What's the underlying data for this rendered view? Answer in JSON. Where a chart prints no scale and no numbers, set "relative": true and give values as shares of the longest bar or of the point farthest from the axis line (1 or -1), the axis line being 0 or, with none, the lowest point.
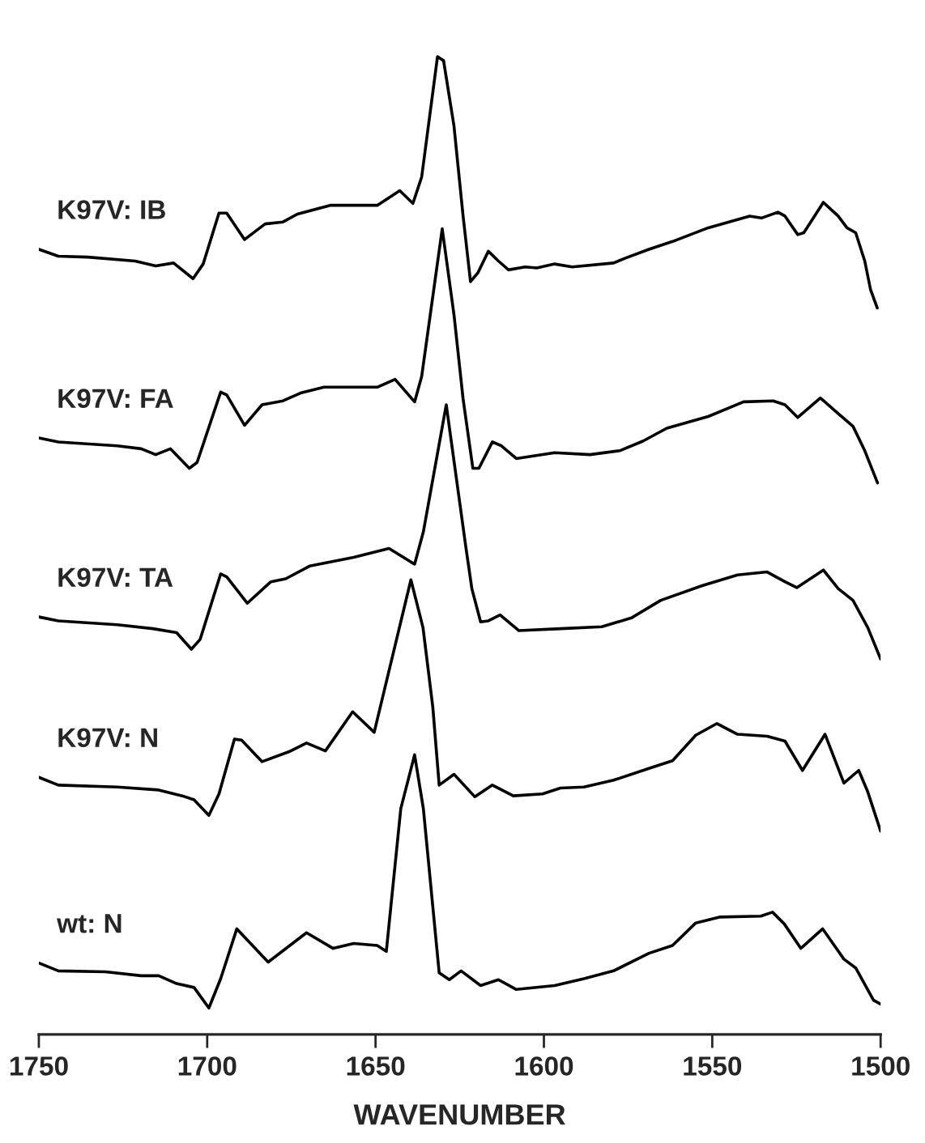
{
  "chart_data": {
    "type": "line",
    "relative": true,
    "xlabel": "WAVENUMBER",
    "xlim": [
      1750,
      1500
    ],
    "xticks": [
      1750,
      1700,
      1650,
      1600,
      1550,
      1500
    ],
    "tick_labels": "x",
    "legend": false,
    "grid": false,
    "line_style": "solid",
    "marker": "none",
    "series": [
      {
        "name": "K97V: IB",
        "color": "#000000",
        "x": [
          1750,
          1744.2,
          1735.4,
          1721.4,
          1715.3,
          1710,
          1704.2,
          1701.2,
          1696.5,
          1694.2,
          1688.9,
          1682.8,
          1677.5,
          1673.2,
          1663.5,
          1649.5,
          1642.8,
          1638.9,
          1636.3,
          1631.6,
          1629.8,
          1626.7,
          1624.0,
          1621.8,
          1619.6,
          1616.5,
          1613.5,
          1610.5,
          1605.6,
          1602.1,
          1596.8,
          1591.6,
          1579.3,
          1575.8,
          1568.8,
          1561.8,
          1551.2,
          1538.9,
          1535.4,
          1530.5,
          1528.4,
          1524.6,
          1522.8,
          1517.0,
          1512.6,
          1510.0,
          1507.4,
          1504.7,
          1503.0,
          1501
        ],
        "values": [
          0.803,
          0.796,
          0.795,
          0.791,
          0.786,
          0.789,
          0.773,
          0.788,
          0.84,
          0.84,
          0.813,
          0.829,
          0.831,
          0.839,
          0.848,
          0.848,
          0.863,
          0.85,
          0.877,
          1.0,
          0.996,
          0.929,
          0.837,
          0.77,
          0.779,
          0.801,
          0.791,
          0.782,
          0.785,
          0.784,
          0.788,
          0.785,
          0.789,
          0.794,
          0.803,
          0.811,
          0.825,
          0.837,
          0.835,
          0.841,
          0.837,
          0.818,
          0.82,
          0.851,
          0.837,
          0.825,
          0.82,
          0.791,
          0.762,
          0.743
        ]
      },
      {
        "name": "K97V: FA",
        "color": "#000000",
        "x": [
          1750,
          1744.2,
          1726.7,
          1719.6,
          1715.3,
          1710.9,
          1705.3,
          1703.0,
          1696.0,
          1694.2,
          1688.9,
          1683.7,
          1677.5,
          1672.3,
          1665.3,
          1649.5,
          1644.2,
          1638.4,
          1636.3,
          1630.2,
          1626.7,
          1624.0,
          1621.1,
          1619.3,
          1615.3,
          1612.6,
          1608.2,
          1596.8,
          1586.3,
          1577.5,
          1570.5,
          1563.5,
          1551.2,
          1540.7,
          1531.9,
          1528.4,
          1524.6,
          1517.9,
          1512.6,
          1508.2,
          1504.7,
          1500.9
        ],
        "values": [
          0.61,
          0.606,
          0.602,
          0.599,
          0.593,
          0.599,
          0.579,
          0.585,
          0.657,
          0.654,
          0.623,
          0.644,
          0.648,
          0.656,
          0.662,
          0.662,
          0.67,
          0.647,
          0.673,
          0.824,
          0.736,
          0.65,
          0.579,
          0.579,
          0.606,
          0.602,
          0.589,
          0.595,
          0.593,
          0.597,
          0.607,
          0.62,
          0.632,
          0.647,
          0.648,
          0.644,
          0.631,
          0.651,
          0.635,
          0.622,
          0.597,
          0.564
        ]
      },
      {
        "name": "K97V: TA",
        "color": "#000000",
        "x": [
          1750,
          1744.2,
          1726.7,
          1716.1,
          1709.1,
          1704.7,
          1702.1,
          1696.0,
          1694.2,
          1688.1,
          1681.1,
          1676.7,
          1669.6,
          1656.5,
          1646.0,
          1638.4,
          1635.8,
          1629.0,
          1623.2,
          1621.4,
          1618.8,
          1616.5,
          1613.0,
          1607.4,
          1595.1,
          1582.8,
          1574.0,
          1565.3,
          1553.0,
          1542.5,
          1533.7,
          1528.4,
          1524.9,
          1517.0,
          1512.6,
          1508.2,
          1503.8,
          1500
        ],
        "values": [
          0.427,
          0.423,
          0.419,
          0.415,
          0.411,
          0.394,
          0.404,
          0.471,
          0.468,
          0.441,
          0.463,
          0.466,
          0.479,
          0.488,
          0.497,
          0.481,
          0.514,
          0.644,
          0.499,
          0.456,
          0.422,
          0.423,
          0.429,
          0.413,
          0.415,
          0.417,
          0.426,
          0.444,
          0.459,
          0.47,
          0.473,
          0.463,
          0.457,
          0.475,
          0.456,
          0.444,
          0.416,
          0.384
        ]
      },
      {
        "name": "K97V: N",
        "color": "#000000",
        "x": [
          1750,
          1744.2,
          1726.7,
          1714.4,
          1707.4,
          1703.9,
          1699.5,
          1696.5,
          1691.9,
          1689.8,
          1683.7,
          1675.8,
          1670.5,
          1664.9,
          1656.8,
          1650.4,
          1639.5,
          1635.9,
          1633.0,
          1631.1,
          1626.7,
          1620.5,
          1615.3,
          1609.1,
          1600.4,
          1595.1,
          1588.1,
          1579.3,
          1568.8,
          1561.8,
          1554.9,
          1548.6,
          1542.5,
          1533.7,
          1528.4,
          1523.2,
          1516.5,
          1510.9,
          1506.5,
          1503.8,
          1500
        ],
        "values": [
          0.263,
          0.255,
          0.253,
          0.25,
          0.244,
          0.24,
          0.224,
          0.246,
          0.302,
          0.301,
          0.279,
          0.289,
          0.298,
          0.29,
          0.33,
          0.309,
          0.465,
          0.416,
          0.335,
          0.255,
          0.266,
          0.243,
          0.255,
          0.244,
          0.246,
          0.252,
          0.253,
          0.26,
          0.272,
          0.28,
          0.306,
          0.318,
          0.307,
          0.305,
          0.3,
          0.27,
          0.307,
          0.257,
          0.27,
          0.248,
          0.208
        ]
      },
      {
        "name": "wt: N",
        "color": "#000000",
        "x": [
          1750,
          1744.2,
          1730.2,
          1719.6,
          1714.4,
          1709.1,
          1703.9,
          1699.5,
          1696.0,
          1691.2,
          1681.9,
          1670.5,
          1662.6,
          1656.5,
          1649.5,
          1646.8,
          1642.5,
          1638.4,
          1635.8,
          1631.1,
          1628.1,
          1624.6,
          1618.8,
          1613.5,
          1608.2,
          1596.8,
          1588.1,
          1579.3,
          1568.8,
          1561.8,
          1554.9,
          1547.9,
          1535.6,
          1532.1,
          1528.6,
          1523.7,
          1517.2,
          1510.9,
          1507.4,
          1502.1,
          1500
        ],
        "values": [
          0.073,
          0.065,
          0.064,
          0.06,
          0.06,
          0.052,
          0.048,
          0.027,
          0.057,
          0.108,
          0.074,
          0.104,
          0.088,
          0.093,
          0.091,
          0.085,
          0.231,
          0.286,
          0.231,
          0.063,
          0.056,
          0.065,
          0.05,
          0.056,
          0.046,
          0.05,
          0.057,
          0.065,
          0.083,
          0.091,
          0.114,
          0.12,
          0.121,
          0.125,
          0.113,
          0.088,
          0.108,
          0.077,
          0.068,
          0.035,
          0.031
        ]
      }
    ]
  }
}
